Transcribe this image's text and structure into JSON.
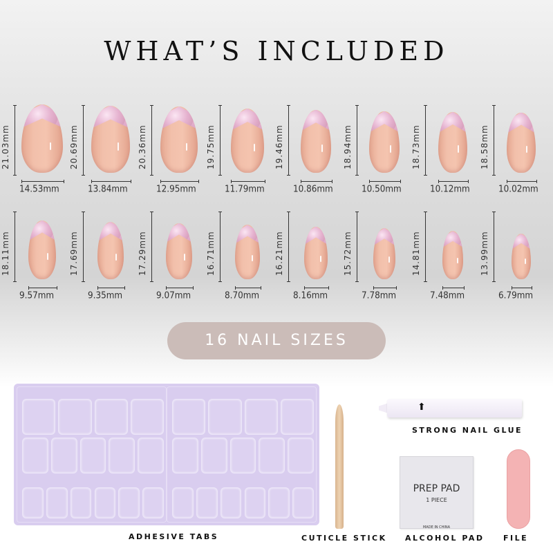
{
  "title": "WHAT’S INCLUDED",
  "badge": "16 NAIL SIZES",
  "nail_rows": [
    [
      {
        "length": "21.03mm",
        "width": "14.53mm",
        "l": 21.03,
        "w": 14.53
      },
      {
        "length": "20.69mm",
        "width": "13.84mm",
        "l": 20.69,
        "w": 13.84
      },
      {
        "length": "20.36mm",
        "width": "12.95mm",
        "l": 20.36,
        "w": 12.95
      },
      {
        "length": "19.75mm",
        "width": "11.79mm",
        "l": 19.75,
        "w": 11.79
      },
      {
        "length": "19.46mm",
        "width": "10.86mm",
        "l": 19.46,
        "w": 10.86
      },
      {
        "length": "18.94mm",
        "width": "10.50mm",
        "l": 18.94,
        "w": 10.5
      },
      {
        "length": "18.73mm",
        "width": "10.12mm",
        "l": 18.73,
        "w": 10.12
      },
      {
        "length": "18.58mm",
        "width": "10.02mm",
        "l": 18.58,
        "w": 10.02
      }
    ],
    [
      {
        "length": "18.11mm",
        "width": "9.57mm",
        "l": 18.11,
        "w": 9.57
      },
      {
        "length": "17.69mm",
        "width": "9.35mm",
        "l": 17.69,
        "w": 9.35
      },
      {
        "length": "17.29mm",
        "width": "9.07mm",
        "l": 17.29,
        "w": 9.07
      },
      {
        "length": "16.71mm",
        "width": "8.70mm",
        "l": 16.71,
        "w": 8.7
      },
      {
        "length": "16.21mm",
        "width": "8.16mm",
        "l": 16.21,
        "w": 8.16
      },
      {
        "length": "15.72mm",
        "width": "7.78mm",
        "l": 15.72,
        "w": 7.78
      },
      {
        "length": "14.81mm",
        "width": "7.48mm",
        "l": 14.81,
        "w": 7.48
      },
      {
        "length": "13.99mm",
        "width": "6.79mm",
        "l": 13.99,
        "w": 6.79
      }
    ]
  ],
  "items": {
    "adhesive_tabs": "ADHESIVE TABS",
    "cuticle_stick": "CUTICLE STICK",
    "glue": "STRONG NAIL GLUE",
    "alcohol_pad": "ALCOHOL PAD",
    "file": "FILE"
  },
  "prep_pad": {
    "line1": "PREP PAD",
    "line2": "1 PIECE",
    "line3": "MADE IN CHINA"
  },
  "colors": {
    "nail": "#f2c0ab",
    "tip": "#e5b2cf",
    "badge": "#cbbcb8",
    "tabs_sheet": "#d9cdef",
    "file": "#f4b3b4"
  }
}
